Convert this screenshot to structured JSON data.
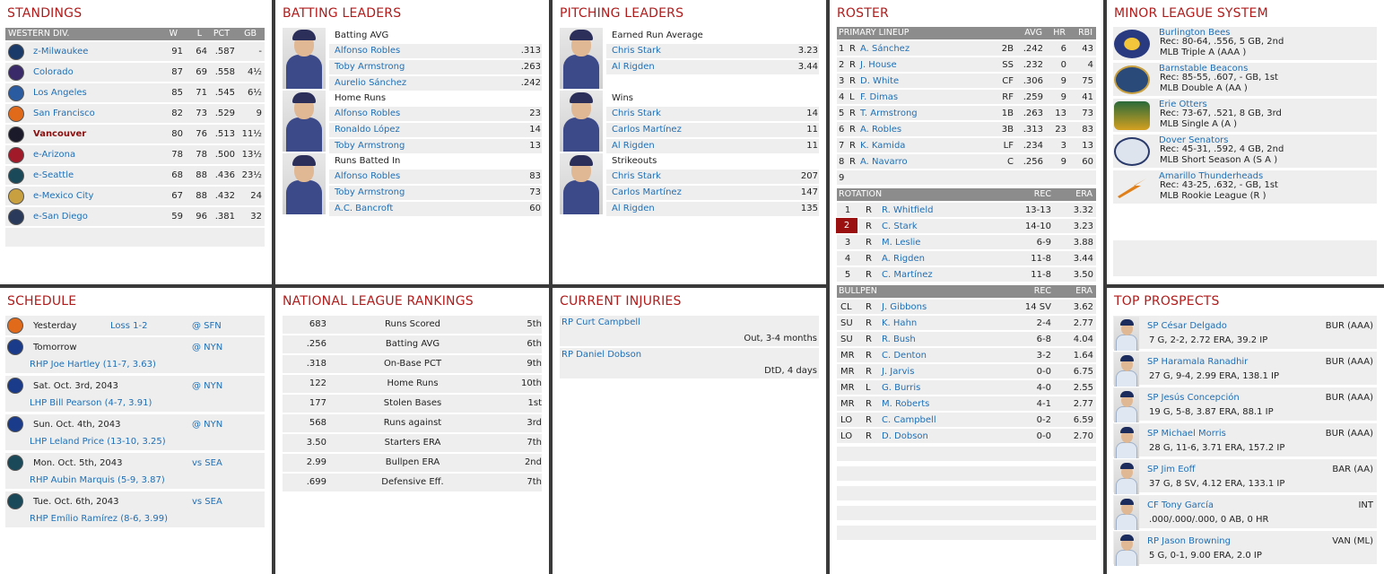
{
  "colors": {
    "title": "#b01c1c",
    "link": "#1f6fb5",
    "header": "#8c8c8c",
    "highlight": "#9a1010"
  },
  "standings": {
    "title": "STANDINGS",
    "division": "WESTERN DIV.",
    "cols": [
      "W",
      "L",
      "PCT",
      "GB"
    ],
    "rows": [
      {
        "team": "z-Milwaukee",
        "w": "91",
        "l": "64",
        "pct": ".587",
        "gb": "-",
        "logo": "brewers-logo",
        "color": "#1a3a6a"
      },
      {
        "team": "Colorado",
        "w": "87",
        "l": "69",
        "pct": ".558",
        "gb": "4½",
        "logo": "rockies-logo",
        "color": "#3a2a6a"
      },
      {
        "team": "Los Angeles",
        "w": "85",
        "l": "71",
        "pct": ".545",
        "gb": "6½",
        "logo": "los-angeles-logo",
        "color": "#2a5aa0"
      },
      {
        "team": "San Francisco",
        "w": "82",
        "l": "73",
        "pct": ".529",
        "gb": "9",
        "logo": "giants-logo",
        "color": "#e06a1a"
      },
      {
        "team": "Vancouver",
        "w": "80",
        "l": "76",
        "pct": ".513",
        "gb": "11½",
        "logo": "vancouver-logo",
        "color": "#1a1a2a",
        "current": true
      },
      {
        "team": "e-Arizona",
        "w": "78",
        "l": "78",
        "pct": ".500",
        "gb": "13½",
        "logo": "diamondbacks-logo",
        "color": "#a01a2a"
      },
      {
        "team": "e-Seattle",
        "w": "68",
        "l": "88",
        "pct": ".436",
        "gb": "23½",
        "logo": "mariners-logo",
        "color": "#1a4a5a"
      },
      {
        "team": "e-Mexico City",
        "w": "67",
        "l": "88",
        "pct": ".432",
        "gb": "24",
        "logo": "mexico-city-logo",
        "color": "#c8a040"
      },
      {
        "team": "e-San Diego",
        "w": "59",
        "l": "96",
        "pct": ".381",
        "gb": "32",
        "logo": "padres-logo",
        "color": "#2a3a5a"
      }
    ]
  },
  "batting": {
    "title": "BATTING LEADERS",
    "groups": [
      {
        "label": "Batting AVG",
        "rows": [
          {
            "name": "Alfonso Robles",
            "val": ".313"
          },
          {
            "name": "Toby Armstrong",
            "val": ".263"
          },
          {
            "name": "Aurelio Sánchez",
            "val": ".242"
          }
        ]
      },
      {
        "label": "Home Runs",
        "rows": [
          {
            "name": "Alfonso Robles",
            "val": "23"
          },
          {
            "name": "Ronaldo López",
            "val": "14"
          },
          {
            "name": "Toby Armstrong",
            "val": "13"
          }
        ]
      },
      {
        "label": "Runs Batted In",
        "rows": [
          {
            "name": "Alfonso Robles",
            "val": "83"
          },
          {
            "name": "Toby Armstrong",
            "val": "73"
          },
          {
            "name": "A.C. Bancroft",
            "val": "60"
          }
        ]
      }
    ]
  },
  "pitching": {
    "title": "PITCHING LEADERS",
    "groups": [
      {
        "label": "Earned Run Average",
        "rows": [
          {
            "name": "Chris Stark",
            "val": "3.23"
          },
          {
            "name": "Al Rigden",
            "val": "3.44"
          }
        ]
      },
      {
        "label": "Wins",
        "rows": [
          {
            "name": "Chris Stark",
            "val": "14"
          },
          {
            "name": "Carlos Martínez",
            "val": "11"
          },
          {
            "name": "Al Rigden",
            "val": "11"
          }
        ]
      },
      {
        "label": "Strikeouts",
        "rows": [
          {
            "name": "Chris Stark",
            "val": "207"
          },
          {
            "name": "Carlos Martínez",
            "val": "147"
          },
          {
            "name": "Al Rigden",
            "val": "135"
          }
        ]
      }
    ]
  },
  "roster": {
    "title": "ROSTER",
    "lineup_header": {
      "label": "PRIMARY LINEUP",
      "avg": "AVG",
      "hr": "HR",
      "rbi": "RBI"
    },
    "lineup": [
      {
        "n": "1",
        "h": "R",
        "name": "A. Sánchez",
        "pos": "2B",
        "avg": ".242",
        "hr": "6",
        "rbi": "43"
      },
      {
        "n": "2",
        "h": "R",
        "name": "J. House",
        "pos": "SS",
        "avg": ".232",
        "hr": "0",
        "rbi": "4"
      },
      {
        "n": "3",
        "h": "R",
        "name": "D. White",
        "pos": "CF",
        "avg": ".306",
        "hr": "9",
        "rbi": "75"
      },
      {
        "n": "4",
        "h": "L",
        "name": "F. Dimas",
        "pos": "RF",
        "avg": ".259",
        "hr": "9",
        "rbi": "41"
      },
      {
        "n": "5",
        "h": "R",
        "name": "T. Armstrong",
        "pos": "1B",
        "avg": ".263",
        "hr": "13",
        "rbi": "73"
      },
      {
        "n": "6",
        "h": "R",
        "name": "A. Robles",
        "pos": "3B",
        "avg": ".313",
        "hr": "23",
        "rbi": "83"
      },
      {
        "n": "7",
        "h": "R",
        "name": "K. Kamida",
        "pos": "LF",
        "avg": ".234",
        "hr": "3",
        "rbi": "13"
      },
      {
        "n": "8",
        "h": "R",
        "name": "A. Navarro",
        "pos": "C",
        "avg": ".256",
        "hr": "9",
        "rbi": "60"
      },
      {
        "n": "9",
        "h": "",
        "name": "",
        "pos": "",
        "avg": "",
        "hr": "",
        "rbi": ""
      }
    ],
    "rotation_header": {
      "label": "ROTATION",
      "rec": "REC",
      "era": "ERA"
    },
    "rotation": [
      {
        "n": "1",
        "h": "R",
        "name": "R. Whitfield",
        "rec": "13-13",
        "era": "3.32"
      },
      {
        "n": "2",
        "h": "R",
        "name": "C. Stark",
        "rec": "14-10",
        "era": "3.23",
        "next": true
      },
      {
        "n": "3",
        "h": "R",
        "name": "M. Leslie",
        "rec": "6-9",
        "era": "3.88"
      },
      {
        "n": "4",
        "h": "R",
        "name": "A. Rigden",
        "rec": "11-8",
        "era": "3.44"
      },
      {
        "n": "5",
        "h": "R",
        "name": "C. Martínez",
        "rec": "11-8",
        "era": "3.50"
      }
    ],
    "bullpen_header": {
      "label": "BULLPEN",
      "rec": "REC",
      "era": "ERA"
    },
    "bullpen": [
      {
        "role": "CL",
        "h": "R",
        "name": "J. Gibbons",
        "rec": "14 SV",
        "era": "3.62"
      },
      {
        "role": "SU",
        "h": "R",
        "name": "K. Hahn",
        "rec": "2-4",
        "era": "2.77"
      },
      {
        "role": "SU",
        "h": "R",
        "name": "R. Bush",
        "rec": "6-8",
        "era": "4.04"
      },
      {
        "role": "MR",
        "h": "R",
        "name": "C. Denton",
        "rec": "3-2",
        "era": "1.64"
      },
      {
        "role": "MR",
        "h": "R",
        "name": "J. Jarvis",
        "rec": "0-0",
        "era": "6.75"
      },
      {
        "role": "MR",
        "h": "L",
        "name": "G. Burris",
        "rec": "4-0",
        "era": "2.55"
      },
      {
        "role": "MR",
        "h": "R",
        "name": "M. Roberts",
        "rec": "4-1",
        "era": "2.77"
      },
      {
        "role": "LO",
        "h": "R",
        "name": "C. Campbell",
        "rec": "0-2",
        "era": "6.59"
      },
      {
        "role": "LO",
        "h": "R",
        "name": "D. Dobson",
        "rec": "0-0",
        "era": "2.70"
      }
    ]
  },
  "minors": {
    "title": "MINOR LEAGUE SYSTEM",
    "teams": [
      {
        "name": "Burlington Bees",
        "rec": "Rec: 80-64, .556, 5 GB, 2nd",
        "level": "MLB Triple A (AAA )",
        "logo": "burlington-bees-logo"
      },
      {
        "name": "Barnstable Beacons",
        "rec": "Rec: 85-55, .607, - GB, 1st",
        "level": "MLB Double A (AA )",
        "logo": "barnstable-beacons-logo"
      },
      {
        "name": "Erie Otters",
        "rec": "Rec: 73-67, .521, 8 GB, 3rd",
        "level": "MLB Single A (A )",
        "logo": "erie-otters-logo"
      },
      {
        "name": "Dover Senators",
        "rec": "Rec: 45-31, .592, 4 GB, 2nd",
        "level": "MLB Short Season A (S A )",
        "logo": "dover-senators-logo",
        "logo_text": "SENATORS"
      },
      {
        "name": "Amarillo Thunderheads",
        "rec": "Rec: 43-25, .632, - GB, 1st",
        "level": "MLB Rookie League (R )",
        "logo": "amarillo-thunderheads-logo"
      }
    ]
  },
  "schedule": {
    "title": "SCHEDULE",
    "rows": [
      {
        "day": "Yesterday",
        "result": "Loss 1-2",
        "opp": "@ SFN",
        "logo": "giants-logo",
        "color": "#e06a1a",
        "pitcher": ""
      },
      {
        "day": "Tomorrow",
        "result": "",
        "opp": "@ NYN",
        "logo": "mets-logo",
        "color": "#1a3a8a",
        "pitcher": "RHP Joe Hartley (11-7, 3.63)"
      },
      {
        "day": "Sat. Oct. 3rd, 2043",
        "result": "",
        "opp": "@ NYN",
        "logo": "mets-logo",
        "color": "#1a3a8a",
        "pitcher": "LHP Bill Pearson (4-7, 3.91)"
      },
      {
        "day": "Sun. Oct. 4th, 2043",
        "result": "",
        "opp": "@ NYN",
        "logo": "mets-logo",
        "color": "#1a3a8a",
        "pitcher": "LHP Leland Price (13-10, 3.25)"
      },
      {
        "day": "Mon. Oct. 5th, 2043",
        "result": "",
        "opp": "vs SEA",
        "logo": "mariners-logo",
        "color": "#1a4a5a",
        "pitcher": "RHP Aubin Marquis (5-9, 3.87)"
      },
      {
        "day": "Tue. Oct. 6th, 2043",
        "result": "",
        "opp": "vs SEA",
        "logo": "mariners-logo",
        "color": "#1a4a5a",
        "pitcher": "RHP Emílio Ramírez (8-6, 3.99)"
      }
    ]
  },
  "rankings": {
    "title": "NATIONAL LEAGUE RANKINGS",
    "rows": [
      {
        "val": "683",
        "label": "Runs Scored",
        "rank": "5th"
      },
      {
        "val": ".256",
        "label": "Batting AVG",
        "rank": "6th"
      },
      {
        "val": ".318",
        "label": "On-Base PCT",
        "rank": "9th"
      },
      {
        "val": "122",
        "label": "Home Runs",
        "rank": "10th"
      },
      {
        "val": "177",
        "label": "Stolen Bases",
        "rank": "1st"
      },
      {
        "val": "568",
        "label": "Runs against",
        "rank": "3rd"
      },
      {
        "val": "3.50",
        "label": "Starters ERA",
        "rank": "7th"
      },
      {
        "val": "2.99",
        "label": "Bullpen ERA",
        "rank": "2nd"
      },
      {
        "val": ".699",
        "label": "Defensive Eff.",
        "rank": "7th"
      }
    ]
  },
  "injuries": {
    "title": "CURRENT INJURIES",
    "rows": [
      {
        "name": "RP Curt Campbell",
        "status": "Out, 3-4 months"
      },
      {
        "name": "RP Daniel Dobson",
        "status": "DtD, 4 days"
      }
    ]
  },
  "prospects": {
    "title": "TOP PROSPECTS",
    "rows": [
      {
        "name": "SP César Delgado",
        "team": "BUR (AAA)",
        "stats": "7 G, 2-2, 2.72 ERA, 39.2 IP"
      },
      {
        "name": "SP Haramala Ranadhir",
        "team": "BUR (AAA)",
        "stats": "27 G, 9-4, 2.99 ERA, 138.1 IP"
      },
      {
        "name": "SP Jesús Concepción",
        "team": "BUR (AAA)",
        "stats": "19 G, 5-8, 3.87 ERA, 88.1 IP"
      },
      {
        "name": "SP Michael Morris",
        "team": "BUR (AAA)",
        "stats": "28 G, 11-6, 3.71 ERA, 157.2 IP"
      },
      {
        "name": "SP Jim Eoff",
        "team": "BAR (AA)",
        "stats": "37 G, 8 SV, 4.12 ERA, 133.1 IP"
      },
      {
        "name": "CF Tony García",
        "team": "INT",
        "stats": ".000/.000/.000, 0 AB, 0 HR"
      },
      {
        "name": "RP Jason Browning",
        "team": "VAN (ML)",
        "stats": "5 G, 0-1, 9.00 ERA, 2.0 IP"
      }
    ]
  }
}
